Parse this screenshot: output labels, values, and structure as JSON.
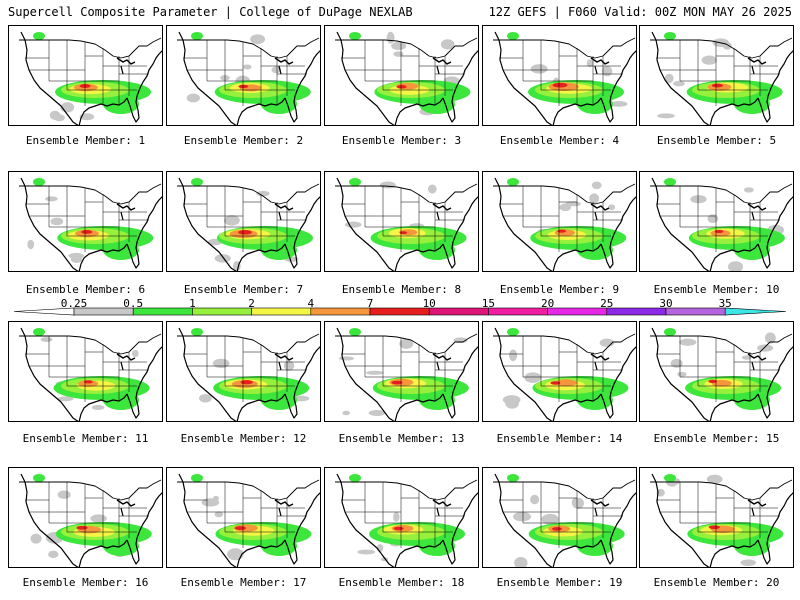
{
  "header": {
    "left_title": "Supercell Composite Parameter | College of DuPage NEXLAB",
    "right_title": "12Z GEFS | F060 Valid: 00Z MON MAY 26 2025"
  },
  "colorbar": {
    "levels": [
      "0.25",
      "0.5",
      "1",
      "2",
      "4",
      "7",
      "10",
      "15",
      "20",
      "25",
      "30",
      "35"
    ],
    "colors": [
      "#c8c8c8",
      "#3ce63c",
      "#96f03c",
      "#f5f546",
      "#f5963c",
      "#e61e1e",
      "#dc1478",
      "#f01ea0",
      "#e628e6",
      "#8c28e6",
      "#b464dc",
      "#3ce6e6"
    ]
  },
  "panels": [
    {
      "label": "Ensemble Member: 1",
      "hot": 0.6
    },
    {
      "label": "Ensemble Member: 2",
      "hot": 0.5
    },
    {
      "label": "Ensemble Member: 3",
      "hot": 0.5
    },
    {
      "label": "Ensemble Member: 4",
      "hot": 0.9
    },
    {
      "label": "Ensemble Member: 5",
      "hot": 0.6
    },
    {
      "label": "Ensemble Member: 6",
      "hot": 0.6
    },
    {
      "label": "Ensemble Member: 7",
      "hot": 0.8
    },
    {
      "label": "Ensemble Member: 8",
      "hot": 0.3
    },
    {
      "label": "Ensemble Member: 9",
      "hot": 0.4
    },
    {
      "label": "Ensemble Member: 10",
      "hot": 0.4
    },
    {
      "label": "Ensemble Member: 11",
      "hot": 0.4
    },
    {
      "label": "Ensemble Member: 12",
      "hot": 0.7
    },
    {
      "label": "Ensemble Member: 13",
      "hot": 0.6
    },
    {
      "label": "Ensemble Member: 14",
      "hot": 0.5
    },
    {
      "label": "Ensemble Member: 15",
      "hot": 0.4
    },
    {
      "label": "Ensemble Member: 16",
      "hot": 0.6
    },
    {
      "label": "Ensemble Member: 17",
      "hot": 0.6
    },
    {
      "label": "Ensemble Member: 18",
      "hot": 0.5
    },
    {
      "label": "Ensemble Member: 19",
      "hot": 0.5
    },
    {
      "label": "Ensemble Member: 20",
      "hot": 0.6
    }
  ]
}
